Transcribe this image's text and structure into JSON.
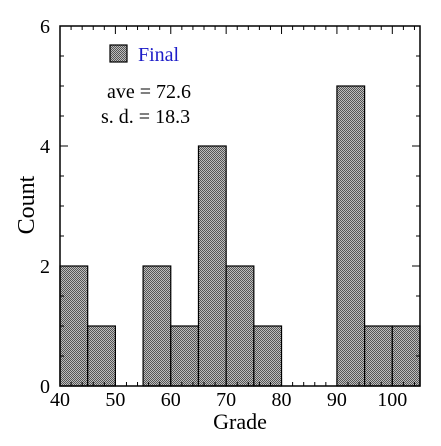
{
  "chart_data": {
    "type": "bar",
    "xlabel": "Grade",
    "ylabel": "Count",
    "xlim": [
      40,
      105
    ],
    "ylim": [
      0,
      6
    ],
    "x_ticks": [
      40,
      50,
      60,
      70,
      80,
      90,
      100
    ],
    "y_ticks": [
      0,
      2,
      4,
      6
    ],
    "bins": [
      {
        "start": 40,
        "end": 45,
        "count": 2
      },
      {
        "start": 45,
        "end": 50,
        "count": 1
      },
      {
        "start": 50,
        "end": 55,
        "count": 0
      },
      {
        "start": 55,
        "end": 60,
        "count": 2
      },
      {
        "start": 60,
        "end": 65,
        "count": 1
      },
      {
        "start": 65,
        "end": 70,
        "count": 4
      },
      {
        "start": 70,
        "end": 75,
        "count": 2
      },
      {
        "start": 75,
        "end": 80,
        "count": 1
      },
      {
        "start": 80,
        "end": 85,
        "count": 0
      },
      {
        "start": 85,
        "end": 90,
        "count": 0
      },
      {
        "start": 90,
        "end": 95,
        "count": 5
      },
      {
        "start": 95,
        "end": 100,
        "count": 1
      },
      {
        "start": 100,
        "end": 105,
        "count": 1
      }
    ],
    "legend": {
      "label": "Final",
      "placement": "top-left"
    },
    "annotations": [
      "ave = 72.6",
      "s. d. = 18.3"
    ],
    "grid": false
  },
  "colors": {
    "bar_fill": "#9a9a9a",
    "bar_stroke": "#000000",
    "legend_text": "#1c1cc8",
    "axis": "#000000"
  }
}
